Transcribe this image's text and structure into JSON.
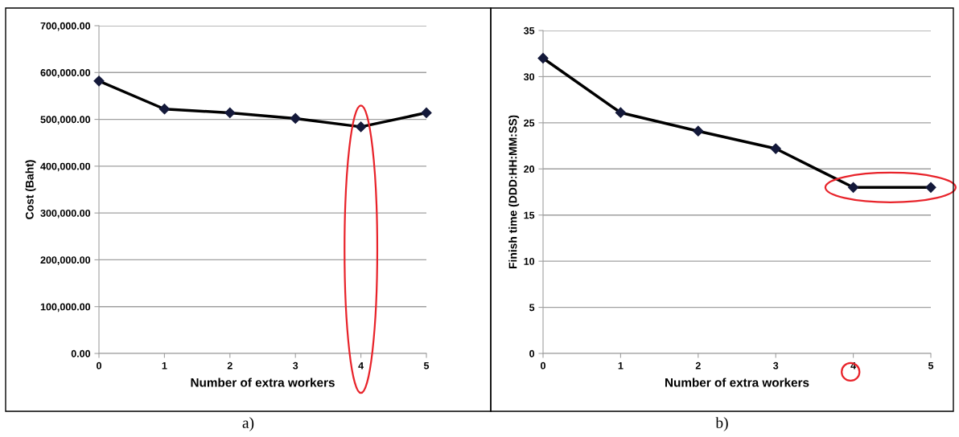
{
  "chart_data": [
    {
      "type": "line",
      "xlabel": "Number of extra workers",
      "ylabel": "Cost (Baht)",
      "categories": [
        "0",
        "1",
        "2",
        "3",
        "4",
        "5"
      ],
      "series": [
        {
          "color": "#000000",
          "values": [
            582000,
            522000,
            514000,
            502000,
            484000,
            514000
          ]
        }
      ],
      "ylim": [
        0,
        700000
      ],
      "yticks": [
        {
          "value": 0,
          "label": "0.00"
        },
        {
          "value": 100000,
          "label": "100,000.00"
        },
        {
          "value": 200000,
          "label": "200,000.00"
        },
        {
          "value": 300000,
          "label": "300,000.00"
        },
        {
          "value": 400000,
          "label": "400,000.00"
        },
        {
          "value": 500000,
          "label": "500,000.00"
        },
        {
          "value": 600000,
          "label": "600,000.00"
        },
        {
          "value": 700000,
          "label": "700,000.00"
        }
      ],
      "grid": "y",
      "marker": "diamond",
      "line_style": "solid",
      "annotations": [
        "a)"
      ]
    },
    {
      "type": "line",
      "xlabel": "Number of extra workers",
      "ylabel": "Finish time (DDD:HH:MM:SS)",
      "categories": [
        "0",
        "1",
        "2",
        "3",
        "4",
        "5"
      ],
      "series": [
        {
          "color": "#000000",
          "values": [
            32.0,
            26.1,
            24.1,
            22.2,
            18.0,
            18.0
          ]
        }
      ],
      "ylim": [
        0,
        35
      ],
      "yticks": [
        0,
        5,
        10,
        15,
        20,
        25,
        30,
        35
      ],
      "grid": "y",
      "marker": "diamond",
      "line_style": "solid",
      "annotations": [
        "b)"
      ]
    }
  ]
}
